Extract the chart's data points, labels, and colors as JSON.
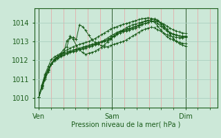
{
  "bg_color": "#cce8d8",
  "plot_bg_color": "#cce8d8",
  "grid_color_h": "#aad0c0",
  "grid_color_v_minor": "#e8a0a0",
  "grid_color_v_major": "#2d5a2d",
  "line_color": "#1a5c1a",
  "xlabel": "Pression niveau de la mer( hPa )",
  "xtick_labels": [
    "Ven",
    "Sam",
    "Dim"
  ],
  "xtick_positions": [
    0,
    48,
    96
  ],
  "ylim": [
    1009.5,
    1014.75
  ],
  "yticks": [
    1010,
    1011,
    1012,
    1013,
    1014
  ],
  "xlim": [
    -3,
    117
  ],
  "n_points": 120,
  "series": [
    [
      1010.05,
      1010.7,
      1011.2,
      1011.55,
      1011.85,
      1012.05,
      1012.2,
      1012.35,
      1012.45,
      1012.55,
      1012.65,
      1012.72,
      1012.78,
      1012.85,
      1012.9,
      1012.95,
      1013.0,
      1013.08,
      1013.15,
      1013.25,
      1013.35,
      1013.45,
      1013.55,
      1013.65,
      1013.72,
      1013.78,
      1013.85,
      1013.9,
      1013.95,
      1014.0,
      1014.05,
      1014.1,
      1014.15,
      1014.2,
      1014.22,
      1014.25,
      1014.22,
      1014.18,
      1014.1,
      1014.0,
      1013.85,
      1013.65,
      1013.4,
      1013.15,
      1013.0,
      1012.88,
      1012.8,
      1012.75
    ],
    [
      1010.05,
      1010.65,
      1011.1,
      1011.5,
      1011.82,
      1012.02,
      1012.18,
      1012.3,
      1012.42,
      1013.05,
      1013.18,
      1013.22,
      1013.1,
      1013.88,
      1013.78,
      1013.58,
      1013.32,
      1013.1,
      1012.95,
      1012.85,
      1012.78,
      1012.72,
      1012.72,
      1012.78,
      1012.85,
      1012.9,
      1012.95,
      1013.0,
      1013.08,
      1013.18,
      1013.28,
      1013.38,
      1013.48,
      1013.58,
      1013.65,
      1013.7,
      1013.75,
      1013.72,
      1013.62,
      1013.55,
      1013.45,
      1013.35,
      1013.3,
      1013.25,
      1013.22,
      1013.2,
      1013.2,
      1013.22
    ],
    [
      1010.05,
      1010.72,
      1011.28,
      1011.68,
      1012.05,
      1012.18,
      1012.28,
      1012.38,
      1012.58,
      1012.72,
      1013.28,
      1013.12,
      1012.78,
      1012.55,
      1012.42,
      1012.32,
      1012.38,
      1012.42,
      1012.48,
      1012.58,
      1012.68,
      1012.82,
      1012.98,
      1013.12,
      1013.28,
      1013.42,
      1013.52,
      1013.62,
      1013.72,
      1013.82,
      1013.88,
      1013.92,
      1013.98,
      1014.02,
      1014.08,
      1014.12,
      1014.1,
      1014.02,
      1013.82,
      1013.62,
      1013.42,
      1013.25,
      1013.15,
      1013.08,
      1013.02,
      1012.95,
      1012.9,
      1012.88
    ],
    [
      1010.05,
      1010.52,
      1011.0,
      1011.48,
      1011.78,
      1011.98,
      1012.08,
      1012.18,
      1012.28,
      1012.35,
      1012.4,
      1012.45,
      1012.5,
      1012.55,
      1012.6,
      1012.65,
      1012.7,
      1012.75,
      1012.8,
      1012.88,
      1012.98,
      1013.08,
      1013.18,
      1013.28,
      1013.38,
      1013.48,
      1013.55,
      1013.6,
      1013.65,
      1013.7,
      1013.75,
      1013.8,
      1013.85,
      1013.9,
      1013.95,
      1014.0,
      1014.05,
      1014.1,
      1014.05,
      1014.0,
      1013.92,
      1013.82,
      1013.7,
      1013.62,
      1013.55,
      1013.5,
      1013.45,
      1013.42
    ],
    [
      1010.05,
      1010.62,
      1011.08,
      1011.48,
      1011.82,
      1012.08,
      1012.18,
      1012.28,
      1012.38,
      1012.45,
      1012.5,
      1012.55,
      1012.6,
      1012.65,
      1012.7,
      1012.75,
      1012.8,
      1012.85,
      1012.9,
      1012.95,
      1013.0,
      1013.05,
      1013.1,
      1013.2,
      1013.3,
      1013.4,
      1013.5,
      1013.55,
      1013.6,
      1013.65,
      1013.7,
      1013.78,
      1013.88,
      1013.98,
      1014.05,
      1014.1,
      1014.15,
      1014.2,
      1014.12,
      1013.92,
      1013.75,
      1013.6,
      1013.48,
      1013.4,
      1013.35,
      1013.3,
      1013.28,
      1013.28
    ],
    [
      1010.05,
      1010.58,
      1011.0,
      1011.38,
      1011.78,
      1011.98,
      1012.12,
      1012.22,
      1012.32,
      1012.38,
      1012.45,
      1012.5,
      1012.55,
      1012.6,
      1012.65,
      1012.7,
      1012.75,
      1012.8,
      1012.85,
      1012.9,
      1012.95,
      1013.0,
      1013.05,
      1013.15,
      1013.25,
      1013.35,
      1013.45,
      1013.5,
      1013.55,
      1013.6,
      1013.65,
      1013.7,
      1013.78,
      1013.88,
      1013.95,
      1014.0,
      1014.05,
      1014.08,
      1013.95,
      1013.82,
      1013.68,
      1013.55,
      1013.45,
      1013.38,
      1013.32,
      1013.28,
      1013.25,
      1013.25
    ]
  ]
}
